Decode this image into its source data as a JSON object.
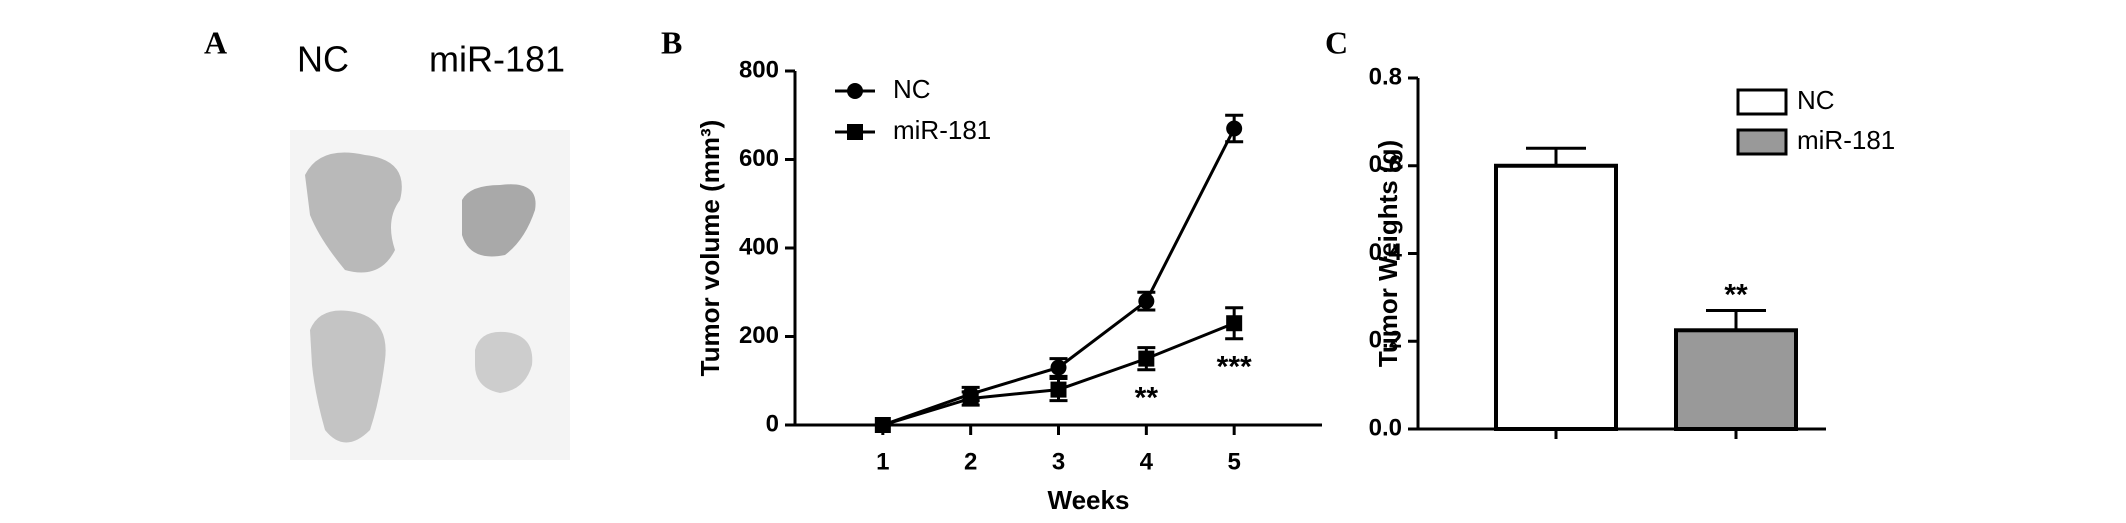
{
  "photo": {
    "panel": "A",
    "columns": [
      "NC",
      "miR-181"
    ]
  },
  "chart_data": [
    {
      "type": "line",
      "panel": "B",
      "ylabel": "Tumor volume (mm³)",
      "xlabel": "Weeks",
      "x": [
        1,
        2,
        3,
        4,
        5
      ],
      "xlim": [
        0,
        6
      ],
      "xticks": [
        1,
        2,
        3,
        4,
        5
      ],
      "ylim": [
        0,
        800
      ],
      "yticks": [
        0,
        200,
        400,
        600,
        800
      ],
      "series": [
        {
          "name": "NC",
          "color": "#000000",
          "marker": "circle",
          "values": [
            0,
            70,
            130,
            280,
            670
          ],
          "errors": [
            0,
            15,
            20,
            20,
            30
          ]
        },
        {
          "name": "miR-181",
          "color": "#000000",
          "marker": "square",
          "values": [
            0,
            60,
            80,
            150,
            230
          ],
          "errors": [
            0,
            15,
            25,
            25,
            35
          ]
        }
      ],
      "annotations": [
        {
          "text": "**",
          "x": 4
        },
        {
          "text": "***",
          "x": 5
        }
      ]
    },
    {
      "type": "bar",
      "panel": "C",
      "ylabel": "Tumor Weights (g)",
      "categories": [
        null,
        null
      ],
      "values": [
        0.6,
        0.225
      ],
      "errors": [
        0.04,
        0.045
      ],
      "colors": [
        "#ffffff",
        "#999999"
      ],
      "legend": [
        "NC",
        "miR-181"
      ],
      "ylim": [
        0,
        0.8
      ],
      "yticks": [
        {
          "value": 0,
          "label": "0.0"
        },
        0.2,
        0.4,
        0.6,
        0.8
      ],
      "annotations": [
        {
          "text": "**",
          "category": 1
        }
      ]
    }
  ]
}
